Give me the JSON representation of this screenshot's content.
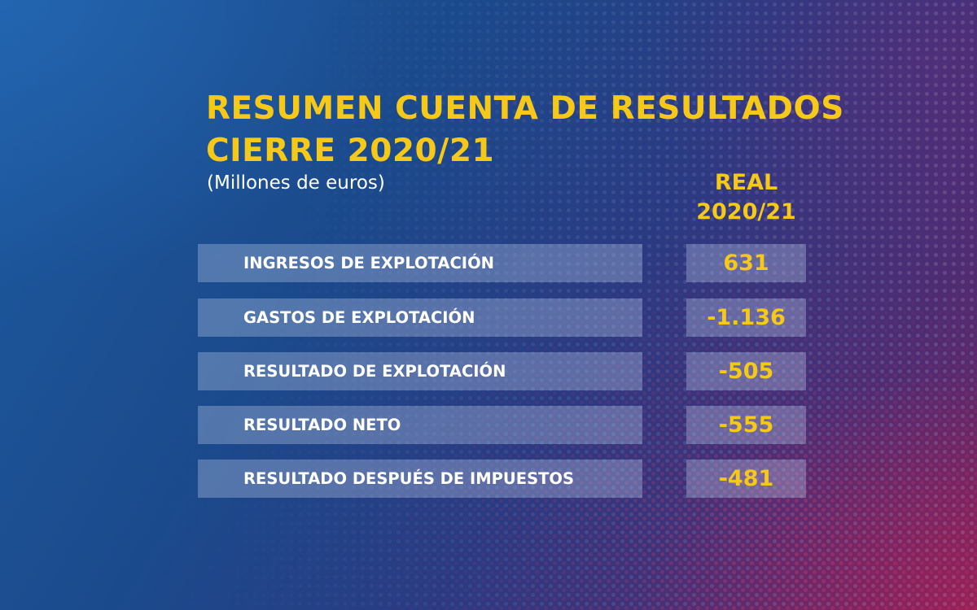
{
  "title": {
    "line1": "RESUMEN CUENTA DE RESULTADOS",
    "line2": "CIERRE 2020/21"
  },
  "subtitle": "(Millones de euros)",
  "column_header": {
    "line1": "REAL",
    "line2": "2020/21"
  },
  "rows": [
    {
      "label": "INGRESOS DE EXPLOTACIÓN",
      "value": "631"
    },
    {
      "label": "GASTOS DE EXPLOTACIÓN",
      "value": "-1.136"
    },
    {
      "label": "RESULTADO DE EXPLOTACIÓN",
      "value": "-505"
    },
    {
      "label": "RESULTADO NETO",
      "value": "-555"
    },
    {
      "label": "RESULTADO DESPUÉS DE IMPUESTOS",
      "value": "-481"
    }
  ],
  "colors": {
    "accent_yellow": "#f6c817",
    "text_white": "#ffffff",
    "bg_blue": "#1d5aa0",
    "bg_magenta": "#6a2462"
  }
}
